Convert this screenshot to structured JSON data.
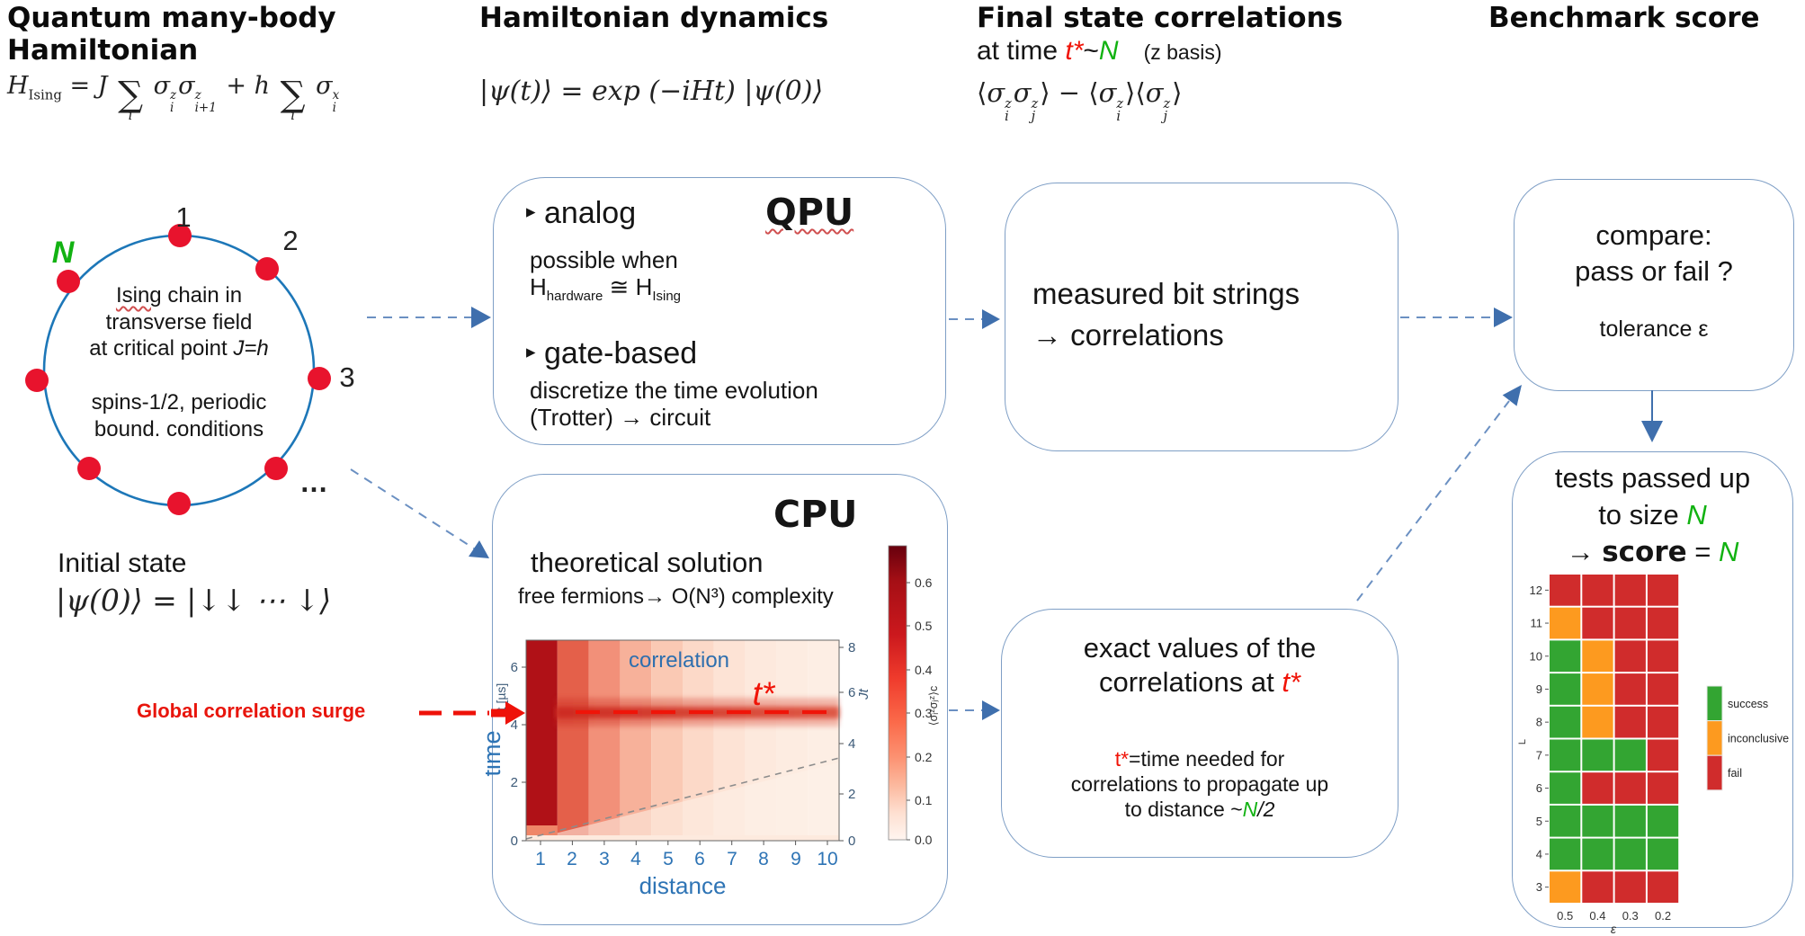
{
  "colors": {
    "accent_blue": "#4173b3",
    "box_border": "#7f9fc6",
    "circle_blue": "#1d77b8",
    "dot_red": "#e8132d",
    "red_accent": "#f01408",
    "green_N": "#12b212",
    "success": "#33a532",
    "inconclusive": "#fd9a1f",
    "fail": "#d02c2c"
  },
  "headers": {
    "col1_line1": "Quantum many-body",
    "col1_line2": "Hamiltonian",
    "col2": "Hamiltonian dynamics",
    "col3_line1": "Final state correlations",
    "col3_at_time": "at time ",
    "col3_tstar": "t*",
    "col3_tilde": "~",
    "col3_N": "N",
    "col3_basis": "(z basis)",
    "col4": "Benchmark score"
  },
  "formulas": {
    "ising": {
      "H": "H",
      "Hsub": "Ising",
      "eqJ": "= J",
      "sum": "∑",
      "i": "i",
      "sigma": "σ",
      "z": "z",
      "ip1": "i+1",
      "plusH": "+ h",
      "x": "x"
    },
    "evolution": "|ψ(t)⟩ = exp (−iHt) |ψ(0)⟩",
    "corr": {
      "lang": "⟨",
      "rang": "⟩",
      "minus": " − ",
      "sigma": "σ",
      "z": "z",
      "i": "i",
      "j": "j"
    },
    "initial": "|ψ(0)⟩ = |↓↓ ⋯ ↓⟩"
  },
  "circle": {
    "n1": "1",
    "n2": "2",
    "n3": "3",
    "N": "N",
    "dots": "…",
    "ising_word": "Ising",
    "line1_rest": " chain in",
    "line2": "transverse field",
    "line3": "at critical point ",
    "line3_math": "J=h",
    "line4": "spins-1/2, periodic",
    "line5": "bound. conditions"
  },
  "initial_label": "Initial state",
  "surge_label": "Global correlation surge",
  "qpu": {
    "bullet": "▸",
    "tag": "QPU",
    "analog": "analog",
    "analog_sub": "possible when",
    "hw_H": "H",
    "hw_sub": "hardware",
    "hw_approx": " ≅ ",
    "hw_H2": "H",
    "hw_sub2": "Ising",
    "gate": "gate-based",
    "gate_sub1": "discretize the time evolution",
    "gate_sub2": "(Trotter) → circuit"
  },
  "cpu": {
    "tag": "CPU",
    "line1": "theoretical solution",
    "line2": "free fermions→  O(N³) complexity"
  },
  "heatmap": {
    "inset": "correlation",
    "tstar": "t*",
    "xlabel": "distance",
    "xticks": [
      "1",
      "2",
      "3",
      "4",
      "5",
      "6",
      "7",
      "8",
      "9",
      "10"
    ],
    "yticks": [
      "6",
      "4",
      "2",
      "0"
    ],
    "ylabel_small": "t [µs]",
    "ylabel_big": "time",
    "right_label": "Jt",
    "right_ticks": [
      "8",
      "6",
      "4",
      "2",
      "0"
    ],
    "cbar_ticks": [
      "0.6",
      "0.5",
      "0.4",
      "0.3",
      "0.2",
      "0.1",
      "0.0"
    ],
    "cbar_label": "⟨σᵢᶻσⱼᶻ⟩c"
  },
  "measured_box": {
    "line1": "measured bit strings",
    "line2": "→  correlations"
  },
  "exact_box": {
    "line1": "exact values of the",
    "line2": "correlations at ",
    "tstar": "t*",
    "note_t": "t*",
    "note1": "=time needed for",
    "note2": "correlations to propagate up",
    "note3": "to distance ~",
    "noteN": "N",
    "note4": "/2"
  },
  "compare_box": {
    "line1": "compare:",
    "line2": "pass or fail ?",
    "line3": "tolerance ε"
  },
  "tests_box": {
    "line1": "tests passed up",
    "line2a": "to size ",
    "N": "N",
    "arrow": "→ ",
    "score": "score",
    "eq": " = ",
    "N2": "N"
  },
  "chart_data": [
    {
      "type": "heatmap",
      "title": "correlation",
      "xlabel": "distance",
      "x": [
        1,
        2,
        3,
        4,
        5,
        6,
        7,
        8,
        9,
        10
      ],
      "ylabel": "t [µs]",
      "ylim": [
        0,
        6.9
      ],
      "right_axis_label": "Jt",
      "right_axis_lim": [
        0,
        8.4
      ],
      "colorbar_label": "⟨σᵢᶻσⱼᶻ⟩c",
      "colorbar_lim": [
        0.0,
        0.6
      ],
      "tstar_time_us": 4.4,
      "annotations": [
        "t*",
        "Global correlation surge"
      ],
      "description": "Correlation intensity decays with distance (dark red column at distance 1), horizontal surge band across all distances at t*≈4.4 µs (Jt≈5.3) marked by red dashed line; gray dashed light-cone from origin."
    },
    {
      "type": "heatmap",
      "xlabel": "ε",
      "ylabel": "L",
      "x": [
        "0.5",
        "0.4",
        "0.3",
        "0.2"
      ],
      "y": [
        "12",
        "11",
        "10",
        "9",
        "8",
        "7",
        "6",
        "5",
        "4",
        "3"
      ],
      "values": [
        [
          "fail",
          "fail",
          "fail",
          "fail"
        ],
        [
          "inconclusive",
          "fail",
          "fail",
          "fail"
        ],
        [
          "success",
          "inconclusive",
          "fail",
          "fail"
        ],
        [
          "success",
          "inconclusive",
          "fail",
          "fail"
        ],
        [
          "success",
          "inconclusive",
          "fail",
          "fail"
        ],
        [
          "success",
          "success",
          "success",
          "fail"
        ],
        [
          "success",
          "fail",
          "fail",
          "fail"
        ],
        [
          "success",
          "success",
          "success",
          "success"
        ],
        [
          "success",
          "success",
          "success",
          "success"
        ],
        [
          "inconclusive",
          "fail",
          "fail",
          "fail"
        ]
      ],
      "legend": [
        {
          "label": "success",
          "color": "#33a532"
        },
        {
          "label": "inconclusive",
          "color": "#fd9a1f"
        },
        {
          "label": "fail",
          "color": "#d02c2c"
        }
      ]
    }
  ]
}
